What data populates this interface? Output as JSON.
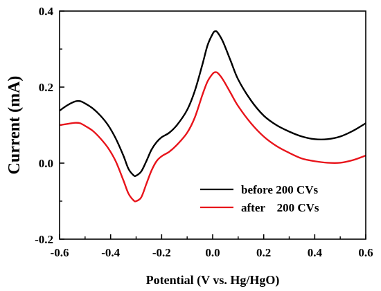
{
  "chart_data": {
    "type": "line",
    "title": "",
    "xlabel": "Potential (V vs. Hg/HgO)",
    "ylabel": "Current (mA)",
    "xlim": [
      -0.6,
      0.6
    ],
    "ylim": [
      -0.2,
      0.4
    ],
    "x_ticks": [
      "-0.6",
      "-0.4",
      "-0.2",
      "0.0",
      "0.2",
      "0.4",
      "0.6"
    ],
    "y_ticks": [
      "-0.2",
      "0.0",
      "0.2",
      "0.4"
    ],
    "grid": false,
    "legend_position": "bottom-right",
    "series": [
      {
        "name": "before 200 CVs",
        "color": "#000000",
        "x": [
          -0.6,
          -0.57,
          -0.54,
          -0.52,
          -0.5,
          -0.47,
          -0.44,
          -0.41,
          -0.38,
          -0.35,
          -0.33,
          -0.31,
          -0.3,
          -0.28,
          -0.26,
          -0.24,
          -0.22,
          -0.2,
          -0.17,
          -0.14,
          -0.1,
          -0.07,
          -0.04,
          -0.02,
          0.0,
          0.01,
          0.02,
          0.04,
          0.07,
          0.1,
          0.15,
          0.2,
          0.25,
          0.3,
          0.35,
          0.4,
          0.45,
          0.5,
          0.55,
          0.6
        ],
        "y": [
          0.138,
          0.152,
          0.162,
          0.163,
          0.157,
          0.144,
          0.125,
          0.1,
          0.065,
          0.02,
          -0.015,
          -0.032,
          -0.033,
          -0.022,
          0.005,
          0.035,
          0.055,
          0.068,
          0.08,
          0.1,
          0.14,
          0.19,
          0.26,
          0.31,
          0.34,
          0.347,
          0.343,
          0.32,
          0.27,
          0.22,
          0.165,
          0.125,
          0.1,
          0.083,
          0.07,
          0.063,
          0.063,
          0.07,
          0.085,
          0.105
        ]
      },
      {
        "name": "after    200 CVs",
        "color": "#e8141b",
        "x": [
          -0.6,
          -0.57,
          -0.54,
          -0.52,
          -0.5,
          -0.47,
          -0.44,
          -0.41,
          -0.38,
          -0.35,
          -0.33,
          -0.31,
          -0.3,
          -0.28,
          -0.26,
          -0.24,
          -0.22,
          -0.2,
          -0.17,
          -0.14,
          -0.1,
          -0.07,
          -0.04,
          -0.02,
          0.0,
          0.01,
          0.02,
          0.04,
          0.07,
          0.1,
          0.15,
          0.2,
          0.25,
          0.3,
          0.35,
          0.4,
          0.45,
          0.5,
          0.55,
          0.6
        ],
        "y": [
          0.1,
          0.103,
          0.106,
          0.105,
          0.098,
          0.085,
          0.065,
          0.04,
          0.005,
          -0.045,
          -0.08,
          -0.098,
          -0.1,
          -0.09,
          -0.055,
          -0.02,
          0.005,
          0.018,
          0.03,
          0.048,
          0.08,
          0.12,
          0.18,
          0.215,
          0.235,
          0.239,
          0.237,
          0.22,
          0.185,
          0.15,
          0.105,
          0.07,
          0.045,
          0.027,
          0.012,
          0.005,
          0.001,
          0.001,
          0.008,
          0.02
        ]
      }
    ]
  }
}
